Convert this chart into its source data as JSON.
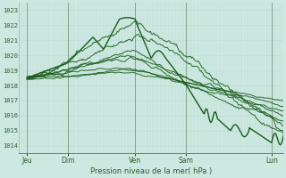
{
  "xlabel": "Pression niveau de la mer( hPa )",
  "ylim": [
    1013.5,
    1023.5
  ],
  "yticks": [
    1014,
    1015,
    1016,
    1017,
    1018,
    1019,
    1020,
    1021,
    1022,
    1023
  ],
  "day_labels": [
    "Jeu",
    "Dim",
    "Ven",
    "Sam",
    "Lun"
  ],
  "day_positions": [
    0.03,
    0.185,
    0.44,
    0.63,
    0.955
  ],
  "background_color": "#cce8e0",
  "grid_major_color": "#aaccc4",
  "grid_minor_color": "#bcddd6",
  "day_line_color": "#557755",
  "line_color": "#1a5c1a",
  "label_color": "#2d5c2d"
}
